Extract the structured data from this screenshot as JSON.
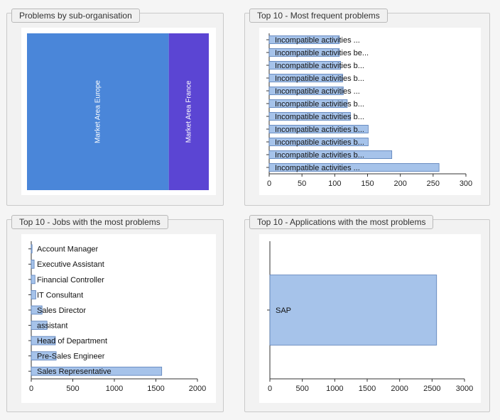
{
  "panels": {
    "treemap": {
      "title": "Problems by sub-organisation"
    },
    "frequent": {
      "title": "Top 10 - Most frequent problems"
    },
    "jobs": {
      "title": "Top 10 - Jobs with the most problems"
    },
    "apps": {
      "title": "Top 10 - Applications with the most problems"
    }
  },
  "chart_data": [
    {
      "id": "treemap",
      "type": "treemap",
      "categories": [
        "Market Area Europe",
        "Market Area France"
      ],
      "values": [
        78,
        22
      ],
      "colors": [
        "#4a86d9",
        "#5b45d3"
      ]
    },
    {
      "id": "frequent",
      "type": "bar",
      "orientation": "horizontal",
      "categories": [
        "Incompatible activities ...",
        "Incompatible activities b...",
        "Incompatible activities b...",
        "Incompatible activities b...",
        "Incompatible activities b...",
        "Incompatible activities b...",
        "Incompatible activities ...",
        "Incompatible activities b...",
        "Incompatible activities b...",
        "Incompatible activities be...",
        "Incompatible activities ..."
      ],
      "values": [
        259,
        187,
        151,
        151,
        124,
        119,
        113,
        112,
        109,
        107,
        107
      ],
      "xticks": [
        0,
        50,
        100,
        150,
        200,
        250,
        300
      ],
      "xlim": [
        0,
        300
      ],
      "bar_color": "#a6c3ea"
    },
    {
      "id": "jobs",
      "type": "bar",
      "orientation": "horizontal",
      "categories": [
        "Sales Representative",
        "Pre-Sales Engineer",
        "Head of Department",
        "assistant",
        "Sales Director",
        "IT Consultant",
        "Financial Controller",
        "Executive Assistant",
        "Account Manager"
      ],
      "values": [
        1570,
        300,
        290,
        190,
        130,
        55,
        45,
        35,
        10
      ],
      "xticks": [
        0,
        500,
        1000,
        1500,
        2000
      ],
      "xlim": [
        0,
        2000
      ],
      "bar_color": "#a6c3ea"
    },
    {
      "id": "apps",
      "type": "bar",
      "orientation": "horizontal",
      "categories": [
        "SAP"
      ],
      "values": [
        2570
      ],
      "xticks": [
        0,
        500,
        1000,
        1500,
        2000,
        2500,
        3000
      ],
      "xlim": [
        0,
        3000
      ],
      "bar_color": "#a6c3ea"
    }
  ]
}
